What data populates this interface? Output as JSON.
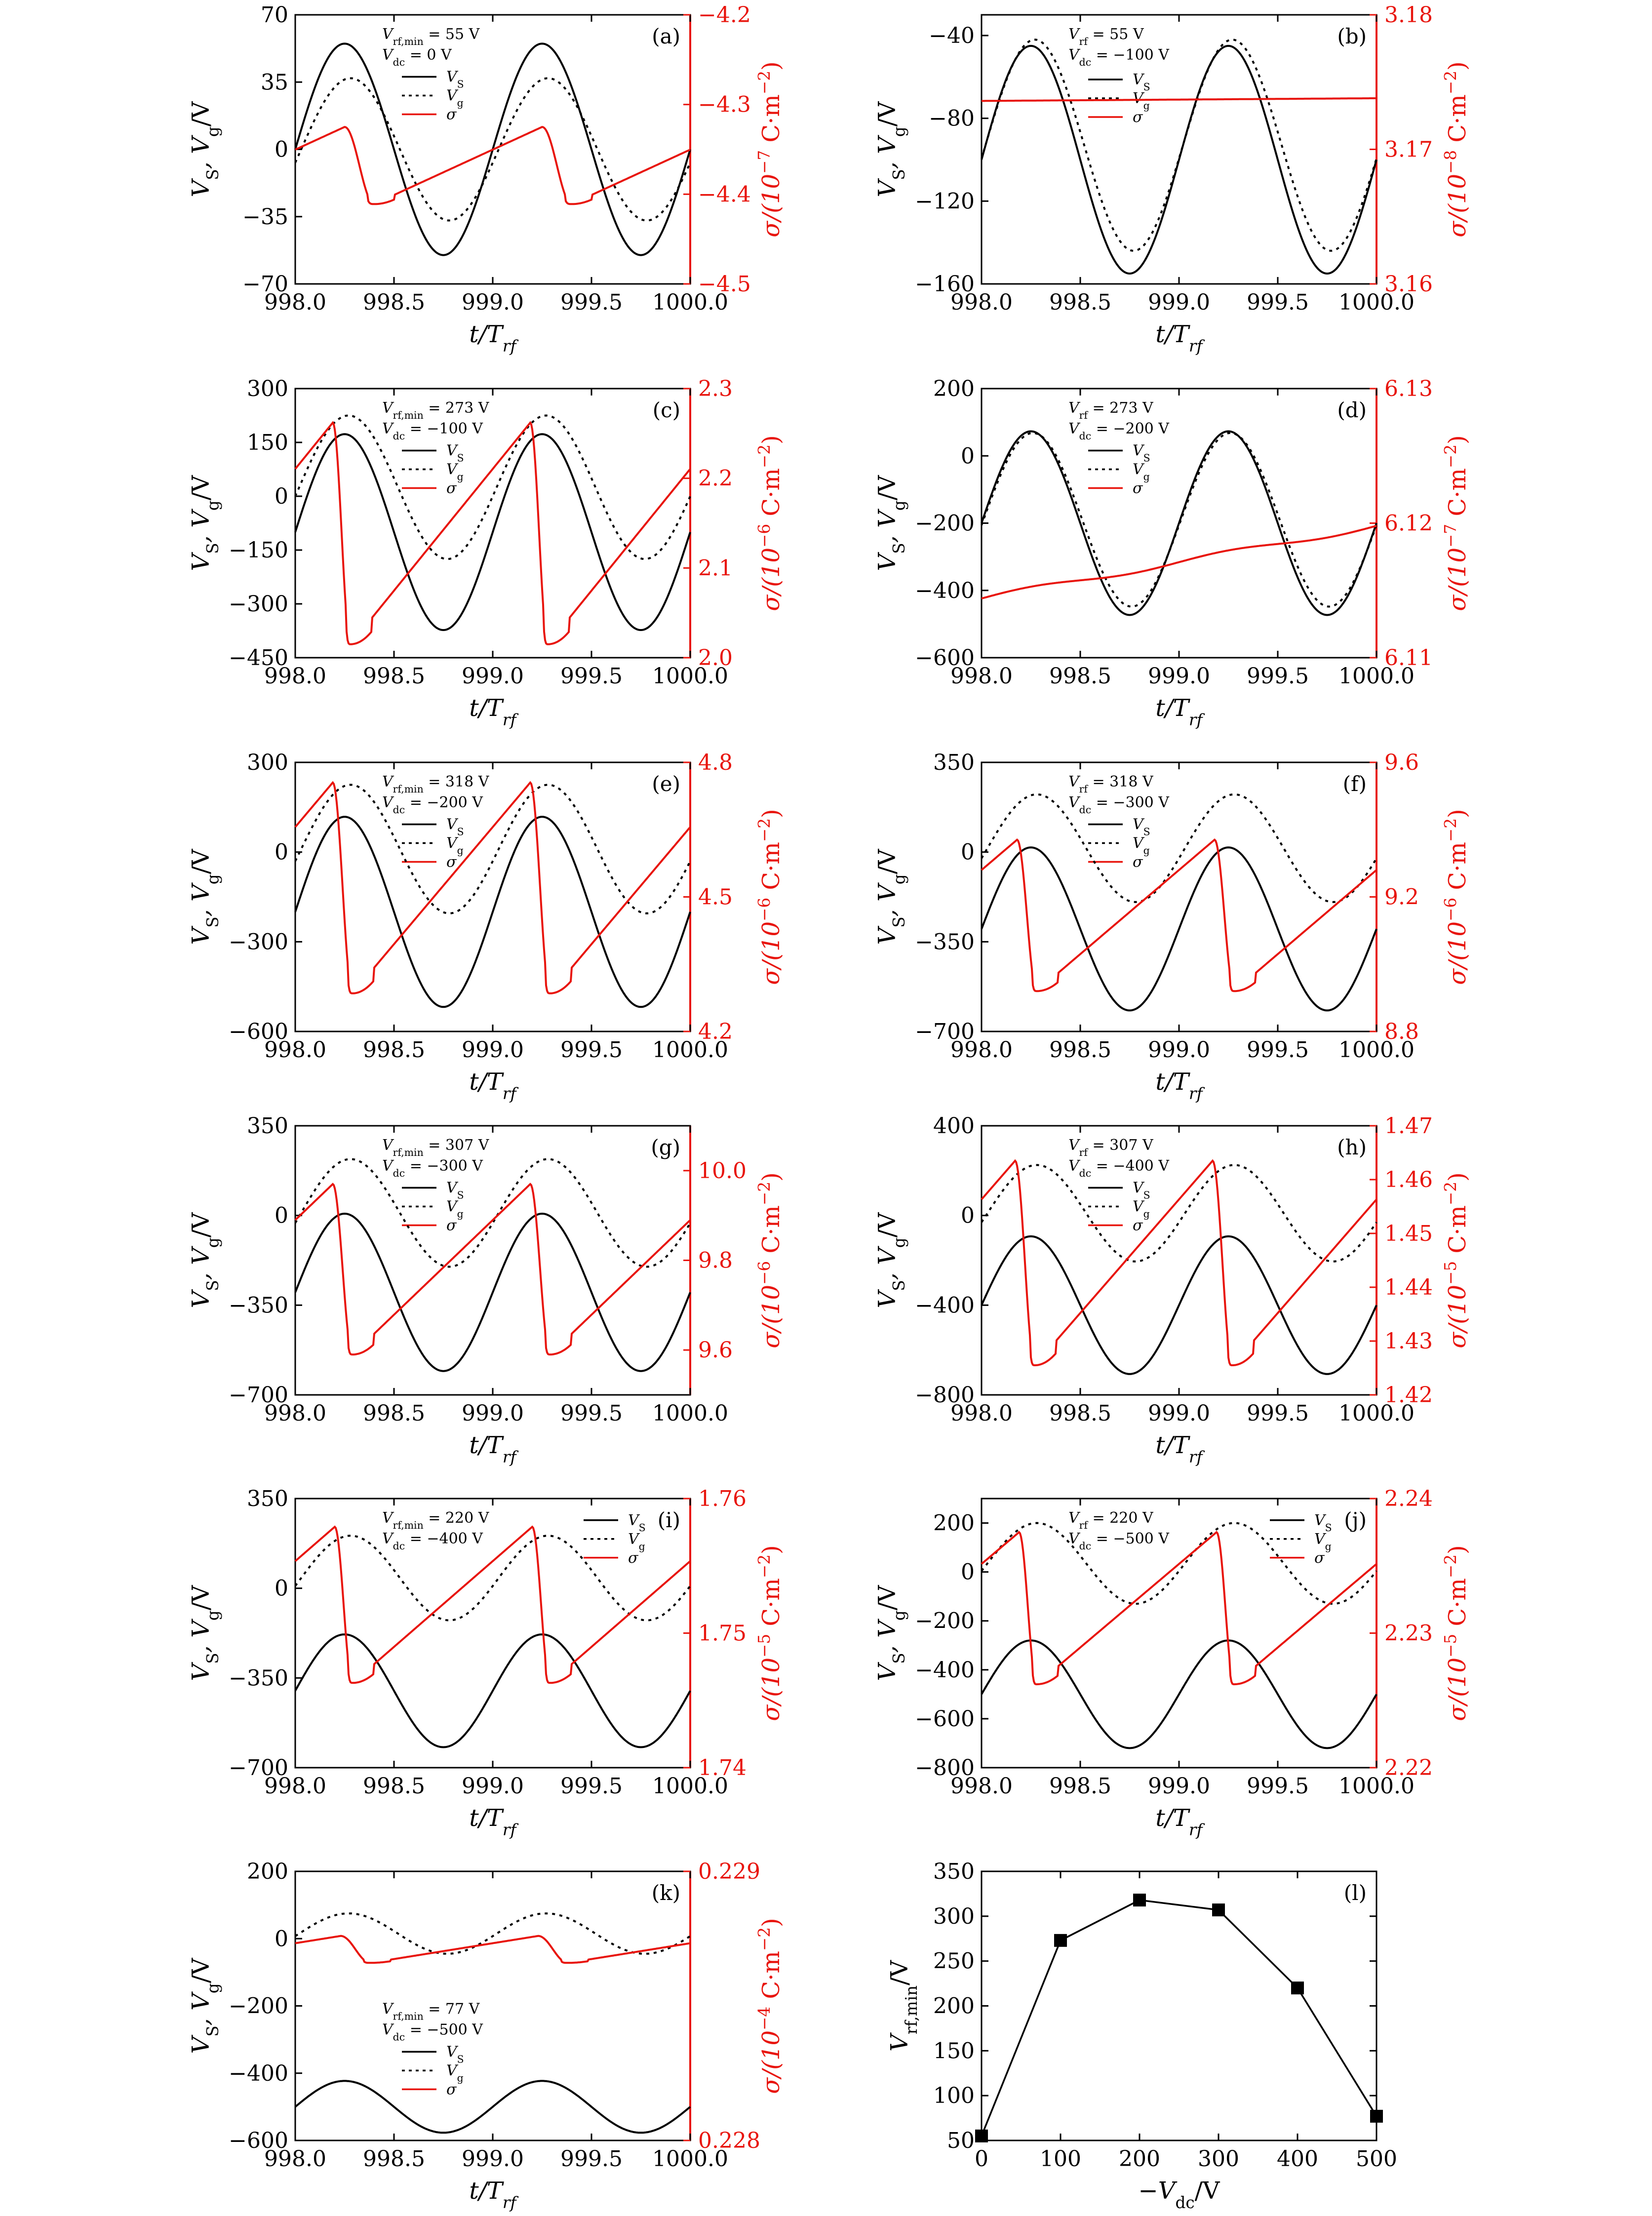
{
  "x_tick_labels": [
    "998.0",
    "998.5",
    "999.0",
    "999.5",
    "1000.0"
  ],
  "x_label": "t/T",
  "x_label_sub": "rf",
  "left_label_main": "V",
  "left_label_sub1": "S",
  "left_label_mid": ", V",
  "left_label_sub2": "g",
  "left_label_end": "/V",
  "colors": {
    "vs": "#000000",
    "vg": "#000000",
    "sigma": "#e8140c",
    "axis": "#000000"
  },
  "legend": {
    "vs": "V",
    "vs_sub": "S",
    "vg": "V",
    "vg_sub": "g",
    "sigma": "σ"
  },
  "chart_data": [
    {
      "id": "a",
      "type": "line",
      "panel_label": "(a)",
      "annot1_base": "V",
      "annot1_sub": "rf,min",
      "annot1_val": " = 55 V",
      "annot2_base": "V",
      "annot2_sub": "dc",
      "annot2_val": " = 0 V",
      "x": [
        998.0,
        1000.0
      ],
      "ylim": [
        -70,
        70
      ],
      "yticks": [
        -70,
        -35,
        0,
        35,
        70
      ],
      "ytick_labels": [
        "−70",
        "−35",
        "0",
        "35",
        "70"
      ],
      "y2lim": [
        -4.5,
        -4.2
      ],
      "y2ticks": [
        -4.5,
        -4.4,
        -4.3,
        -4.2
      ],
      "y2tick_labels": [
        "−4.5",
        "−4.4",
        "−4.3",
        "−4.2"
      ],
      "y2label_prefix": "σ/(10",
      "y2label_exp": "−7",
      "y2label_suffix": " C·m",
      "y2label_exp2": "−2",
      "y2label_end": ")",
      "series": [
        {
          "key": "vs",
          "amp": 55,
          "offset": 0
        },
        {
          "key": "vg",
          "amp": 37,
          "offset": 0,
          "phase": -0.03,
          "asym": 0.4
        },
        {
          "key": "sigma",
          "kind": "saw",
          "min": -4.411,
          "max": -4.325,
          "peak": 0.25,
          "fall": 0.15
        }
      ]
    },
    {
      "id": "b",
      "type": "line",
      "panel_label": "(b)",
      "annot1_base": "V",
      "annot1_sub": "rf",
      "annot1_val": " = 55 V",
      "annot2_base": "V",
      "annot2_sub": "dc",
      "annot2_val": " = −100 V",
      "x": [
        998.0,
        1000.0
      ],
      "ylim": [
        -160,
        -30
      ],
      "yticks": [
        -160,
        -120,
        -80,
        -40
      ],
      "ytick_labels": [
        "−160",
        "−120",
        "−80",
        "−40"
      ],
      "y2lim": [
        3.16,
        3.18
      ],
      "y2ticks": [
        3.16,
        3.17,
        3.18
      ],
      "y2tick_labels": [
        "3.16",
        "3.17",
        "3.18"
      ],
      "y2label_prefix": "σ/(10",
      "y2label_exp": "−8",
      "y2label_suffix": " C·m",
      "y2label_exp2": "−2",
      "y2label_end": ")",
      "legend_x": 0.27,
      "legend_y": 0.2,
      "series": [
        {
          "key": "vs",
          "amp": 55,
          "offset": -100
        },
        {
          "key": "vg",
          "amp": 51,
          "offset": -93,
          "phase": -0.02
        },
        {
          "key": "sigma",
          "kind": "ramp",
          "start": 3.1736,
          "end": 3.1738
        }
      ]
    },
    {
      "id": "c",
      "type": "line",
      "panel_label": "(c)",
      "annot1_base": "V",
      "annot1_sub": "rf,min",
      "annot1_val": " = 273 V",
      "annot2_base": "V",
      "annot2_sub": "dc",
      "annot2_val": " = −100 V",
      "x": [
        998.0,
        1000.0
      ],
      "ylim": [
        -450,
        300
      ],
      "yticks": [
        -450,
        -300,
        -150,
        0,
        150,
        300
      ],
      "ytick_labels": [
        "−450",
        "−300",
        "−150",
        "0",
        "150",
        "300"
      ],
      "y2lim": [
        2.0,
        2.3
      ],
      "y2ticks": [
        2.0,
        2.1,
        2.2,
        2.3
      ],
      "y2tick_labels": [
        "2.0",
        "2.1",
        "2.2",
        "2.3"
      ],
      "y2label_prefix": "σ/(10",
      "y2label_exp": "−6",
      "y2label_suffix": " C·m",
      "y2label_exp2": "−2",
      "y2label_end": ")",
      "series": [
        {
          "key": "vs",
          "amp": 273,
          "offset": -100
        },
        {
          "key": "vg",
          "amp": 200,
          "offset": 25,
          "phase": -0.02
        },
        {
          "key": "sigma",
          "kind": "saw",
          "min": 2.015,
          "max": 2.262,
          "peak": 0.19,
          "fall": 0.09
        }
      ]
    },
    {
      "id": "d",
      "type": "line",
      "panel_label": "(d)",
      "annot1_base": "V",
      "annot1_sub": "rf",
      "annot1_val": " = 273 V",
      "annot2_base": "V",
      "annot2_sub": "dc",
      "annot2_val": " = −200 V",
      "x": [
        998.0,
        1000.0
      ],
      "ylim": [
        -600,
        200
      ],
      "yticks": [
        -600,
        -400,
        -200,
        0,
        200
      ],
      "ytick_labels": [
        "−600",
        "−400",
        "−200",
        "0",
        "200"
      ],
      "y2lim": [
        6.11,
        6.13
      ],
      "y2ticks": [
        6.11,
        6.12,
        6.13
      ],
      "y2tick_labels": [
        "6.11",
        "6.12",
        "6.13"
      ],
      "y2label_prefix": "σ/(10",
      "y2label_exp": "−7",
      "y2label_suffix": " C·m",
      "y2label_exp2": "−2",
      "y2label_end": ")",
      "series": [
        {
          "key": "vs",
          "amp": 273,
          "offset": -200
        },
        {
          "key": "vg",
          "amp": 258,
          "offset": -190,
          "phase": -0.01
        },
        {
          "key": "sigma",
          "kind": "ramp",
          "start": 6.1144,
          "end": 6.1198,
          "wobble": 0.0002
        }
      ]
    },
    {
      "id": "e",
      "type": "line",
      "panel_label": "(e)",
      "annot1_base": "V",
      "annot1_sub": "rf,min",
      "annot1_val": " = 318 V",
      "annot2_base": "V",
      "annot2_sub": "dc",
      "annot2_val": " = −200 V",
      "x": [
        998.0,
        1000.0
      ],
      "ylim": [
        -600,
        300
      ],
      "yticks": [
        -600,
        -300,
        0,
        300
      ],
      "ytick_labels": [
        "−600",
        "−300",
        "0",
        "300"
      ],
      "y2lim": [
        4.2,
        4.8
      ],
      "y2ticks": [
        4.2,
        4.5,
        4.8
      ],
      "y2tick_labels": [
        "4.2",
        "4.5",
        "4.8"
      ],
      "y2label_prefix": "σ/(10",
      "y2label_exp": "−6",
      "y2label_suffix": " C·m",
      "y2label_exp2": "−2",
      "y2label_end": ")",
      "series": [
        {
          "key": "vs",
          "amp": 318,
          "offset": -200
        },
        {
          "key": "vg",
          "amp": 215,
          "offset": 10,
          "phase": -0.03
        },
        {
          "key": "sigma",
          "kind": "saw",
          "min": 4.285,
          "max": 4.755,
          "peak": 0.19,
          "fall": 0.1
        }
      ]
    },
    {
      "id": "f",
      "type": "line",
      "panel_label": "(f)",
      "annot1_base": "V",
      "annot1_sub": "rf",
      "annot1_val": " = 318 V",
      "annot2_base": "V",
      "annot2_sub": "dc",
      "annot2_val": " = −300 V",
      "x": [
        998.0,
        1000.0
      ],
      "ylim": [
        -700,
        350
      ],
      "yticks": [
        -700,
        -350,
        0,
        350
      ],
      "ytick_labels": [
        "−700",
        "−350",
        "0",
        "350"
      ],
      "y2lim": [
        8.8,
        9.6
      ],
      "y2ticks": [
        8.8,
        9.2,
        9.6
      ],
      "y2tick_labels": [
        "8.8",
        "9.2",
        "9.6"
      ],
      "y2label_prefix": "σ/(10",
      "y2label_exp": "−6",
      "y2label_suffix": " C·m",
      "y2label_exp2": "−2",
      "y2label_end": ")",
      "series": [
        {
          "key": "vs",
          "amp": 318,
          "offset": -300
        },
        {
          "key": "vg",
          "amp": 210,
          "offset": 15,
          "phase": -0.03
        },
        {
          "key": "sigma",
          "kind": "saw",
          "min": 8.92,
          "max": 9.37,
          "peak": 0.18,
          "fall": 0.1
        }
      ]
    },
    {
      "id": "g",
      "type": "line",
      "panel_label": "(g)",
      "annot1_base": "V",
      "annot1_sub": "rf,min",
      "annot1_val": " = 307 V",
      "annot2_base": "V",
      "annot2_sub": "dc",
      "annot2_val": " = −300 V",
      "x": [
        998.0,
        1000.0
      ],
      "ylim": [
        -700,
        350
      ],
      "yticks": [
        -700,
        -350,
        0,
        350
      ],
      "ytick_labels": [
        "−700",
        "−350",
        "0",
        "350"
      ],
      "y2lim": [
        9.5,
        10.1
      ],
      "y2ticks": [
        9.6,
        9.8,
        10.0
      ],
      "y2tick_labels": [
        "9.6",
        "9.8",
        "10.0"
      ],
      "y2label_prefix": "σ/(10",
      "y2label_exp": "−6",
      "y2label_suffix": " C·m",
      "y2label_exp2": "−2",
      "y2label_end": ")",
      "series": [
        {
          "key": "vs",
          "amp": 307,
          "offset": -300
        },
        {
          "key": "vg",
          "amp": 210,
          "offset": 10,
          "phase": -0.03
        },
        {
          "key": "sigma",
          "kind": "saw",
          "min": 9.59,
          "max": 9.97,
          "peak": 0.19,
          "fall": 0.1
        }
      ]
    },
    {
      "id": "h",
      "type": "line",
      "panel_label": "(h)",
      "annot1_base": "V",
      "annot1_sub": "rf",
      "annot1_val": " = 307 V",
      "annot2_base": "V",
      "annot2_sub": "dc",
      "annot2_val": " = −400 V",
      "x": [
        998.0,
        1000.0
      ],
      "ylim": [
        -800,
        400
      ],
      "yticks": [
        -800,
        -400,
        0,
        400
      ],
      "ytick_labels": [
        "−800",
        "−400",
        "0",
        "400"
      ],
      "y2lim": [
        1.42,
        1.47
      ],
      "y2ticks": [
        1.42,
        1.43,
        1.44,
        1.45,
        1.46,
        1.47
      ],
      "y2tick_labels": [
        "1.42",
        "1.43",
        "1.44",
        "1.45",
        "1.46",
        "1.47"
      ],
      "y2label_prefix": "σ/(10",
      "y2label_exp": "−5",
      "y2label_suffix": " C·m",
      "y2label_exp2": "−2",
      "y2label_end": ")",
      "series": [
        {
          "key": "vs",
          "amp": 307,
          "offset": -400
        },
        {
          "key": "vg",
          "amp": 215,
          "offset": 10,
          "phase": -0.03
        },
        {
          "key": "sigma",
          "kind": "saw",
          "min": 1.4255,
          "max": 1.4635,
          "peak": 0.17,
          "fall": 0.1
        }
      ]
    },
    {
      "id": "i",
      "type": "line",
      "panel_label": "(i)",
      "annot1_base": "V",
      "annot1_sub": "rf,min",
      "annot1_val": " = 220 V",
      "annot2_base": "V",
      "annot2_sub": "dc",
      "annot2_val": " = −400 V",
      "x": [
        998.0,
        1000.0
      ],
      "ylim": [
        -700,
        350
      ],
      "yticks": [
        -700,
        -350,
        0,
        350
      ],
      "ytick_labels": [
        "−700",
        "−350",
        "0",
        "350"
      ],
      "y2lim": [
        1.74,
        1.76
      ],
      "y2ticks": [
        1.74,
        1.75,
        1.76
      ],
      "y2tick_labels": [
        "1.74",
        "1.75",
        "1.76"
      ],
      "y2label_prefix": "σ/(10",
      "y2label_exp": "−5",
      "y2label_suffix": " C·m",
      "y2label_exp2": "−2",
      "y2label_end": ")",
      "legend_x": 0.73,
      "legend_y": 0.04,
      "series": [
        {
          "key": "vs",
          "amp": 220,
          "offset": -400
        },
        {
          "key": "vg",
          "amp": 165,
          "offset": 40,
          "phase": -0.03
        },
        {
          "key": "sigma",
          "kind": "saw",
          "min": 1.7463,
          "max": 1.7579,
          "peak": 0.2,
          "fall": 0.09
        }
      ]
    },
    {
      "id": "j",
      "type": "line",
      "panel_label": "(j)",
      "annot1_base": "V",
      "annot1_sub": "rf",
      "annot1_val": " = 220 V",
      "annot2_base": "V",
      "annot2_sub": "dc",
      "annot2_val": " = −500 V",
      "x": [
        998.0,
        1000.0
      ],
      "ylim": [
        -800,
        300
      ],
      "yticks": [
        -800,
        -600,
        -400,
        -200,
        0,
        200
      ],
      "ytick_labels": [
        "−800",
        "−600",
        "−400",
        "−200",
        "0",
        "200"
      ],
      "y2lim": [
        2.22,
        2.24
      ],
      "y2ticks": [
        2.22,
        2.23,
        2.24
      ],
      "y2tick_labels": [
        "2.22",
        "2.23",
        "2.24"
      ],
      "y2label_prefix": "σ/(10",
      "y2label_exp": "−5",
      "y2label_suffix": " C·m",
      "y2label_exp2": "−2",
      "y2label_end": ")",
      "legend_x": 0.73,
      "legend_y": 0.04,
      "series": [
        {
          "key": "vs",
          "amp": 220,
          "offset": -500
        },
        {
          "key": "vg",
          "amp": 165,
          "offset": 35,
          "phase": -0.03
        },
        {
          "key": "sigma",
          "kind": "saw",
          "min": 2.2262,
          "max": 2.2375,
          "peak": 0.19,
          "fall": 0.09
        }
      ]
    },
    {
      "id": "k",
      "type": "line",
      "panel_label": "(k)",
      "annot1_base": "V",
      "annot1_sub": "rf,min",
      "annot1_val": " = 77 V",
      "annot2_base": "V",
      "annot2_sub": "dc",
      "annot2_val": " = −500 V",
      "x": [
        998.0,
        1000.0
      ],
      "ylim": [
        -600,
        200
      ],
      "yticks": [
        -600,
        -400,
        -200,
        0,
        200
      ],
      "ytick_labels": [
        "−600",
        "−400",
        "−200",
        "0",
        "200"
      ],
      "y2lim": [
        0.228,
        0.229
      ],
      "y2ticks": [
        0.228,
        0.229
      ],
      "y2tick_labels": [
        "0.228",
        "0.229"
      ],
      "y2label_prefix": "σ/(10",
      "y2label_exp": "−4",
      "y2label_suffix": " C·m",
      "y2label_exp2": "−2",
      "y2label_end": ")",
      "annot_x": 0.22,
      "annot_y": 0.46,
      "legend_x": 0.27,
      "legend_y": 0.63,
      "series": [
        {
          "key": "vs",
          "amp": 77,
          "offset": -500
        },
        {
          "key": "vg",
          "amp": 60,
          "offset": 15,
          "phase": -0.02
        },
        {
          "key": "sigma",
          "kind": "saw",
          "min": 0.22866,
          "max": 0.22876,
          "peak": 0.23,
          "fall": 0.15
        }
      ]
    },
    {
      "id": "l",
      "type": "scatter",
      "panel_label": "(l)",
      "x": [
        0,
        100,
        200,
        300,
        400,
        500
      ],
      "y": [
        55,
        273,
        318,
        307,
        220,
        77
      ],
      "xlim": [
        0,
        500
      ],
      "ylim": [
        50,
        350
      ],
      "xticks": [
        0,
        100,
        200,
        300,
        400,
        500
      ],
      "xtick_labels": [
        "0",
        "100",
        "200",
        "300",
        "400",
        "500"
      ],
      "yticks": [
        50,
        100,
        150,
        200,
        250,
        300,
        350
      ],
      "ytick_labels": [
        "50",
        "100",
        "150",
        "200",
        "250",
        "300",
        "350"
      ],
      "xlabel_pre": "−V",
      "xlabel_sub": "dc",
      "xlabel_end": "/V",
      "ylabel_main": "V",
      "ylabel_sub": "rf,min",
      "ylabel_end": "/V"
    }
  ]
}
